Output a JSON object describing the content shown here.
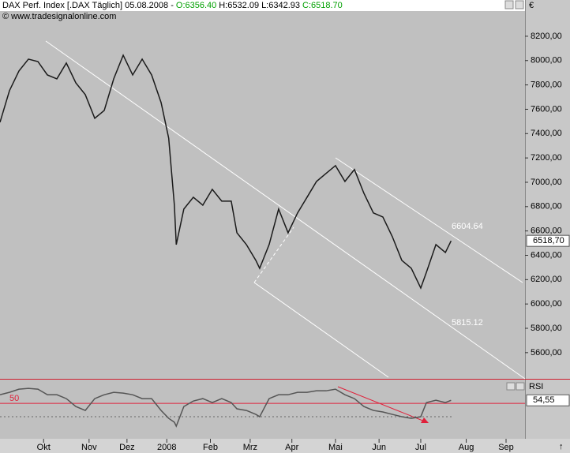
{
  "header": {
    "instrument": "DAX Perf. Index [.DAX  Täglich] 05.08.2008 - ",
    "open": "O:6356.40",
    "high": "H:6532.09",
    "low": "L:6342.93",
    "close": "C:6518.70",
    "copyright": "© www.tradesignalonline.com"
  },
  "chart_data": [
    {
      "type": "line",
      "color": "#1a1a1a",
      "x": [
        0,
        5,
        10,
        15,
        20,
        25,
        30,
        35,
        40,
        45,
        50,
        55,
        60,
        65,
        70,
        75,
        80,
        85,
        89,
        92,
        93,
        97,
        102,
        107,
        112,
        117,
        122,
        125,
        130,
        135,
        137,
        142,
        147,
        152,
        157,
        162,
        167,
        172,
        177,
        182,
        187,
        192,
        197,
        202,
        207,
        212,
        217,
        222,
        225,
        230,
        235,
        238
      ],
      "series": [
        {
          "name": "DAX",
          "color": "#1a1a1a",
          "values": [
            7493,
            7753,
            7915,
            8012,
            7992,
            7882,
            7850,
            7980,
            7817,
            7720,
            7526,
            7590,
            7850,
            8044,
            7882,
            8012,
            7882,
            7655,
            7363,
            6812,
            6488,
            6780,
            6877,
            6812,
            6942,
            6845,
            6845,
            6585,
            6488,
            6358,
            6293,
            6488,
            6780,
            6585,
            6748,
            6877,
            7007,
            7072,
            7137,
            7007,
            7105,
            6910,
            6748,
            6715,
            6553,
            6358,
            6293,
            6131,
            6261,
            6488,
            6423,
            6518.7
          ]
        }
      ],
      "xlim": [
        0,
        277
      ],
      "xticks": [
        {
          "value": 23,
          "label": "Okt"
        },
        {
          "value": 47,
          "label": "Nov"
        },
        {
          "value": 67,
          "label": "Dez"
        },
        {
          "value": 88,
          "label": "2008"
        },
        {
          "value": 111,
          "label": "Feb"
        },
        {
          "value": 132,
          "label": "Mrz"
        },
        {
          "value": 154,
          "label": "Apr"
        },
        {
          "value": 177,
          "label": "Mai"
        },
        {
          "value": 200,
          "label": "Jun"
        },
        {
          "value": 222,
          "label": "Jul"
        },
        {
          "value": 246,
          "label": "Aug"
        },
        {
          "value": 267,
          "label": "Sep"
        }
      ],
      "ylim": [
        5385,
        8407
      ],
      "yticks": [
        {
          "value": 8200,
          "label": "8200,00"
        },
        {
          "value": 8000,
          "label": "8000,00"
        },
        {
          "value": 7800,
          "label": "7800,00"
        },
        {
          "value": 7600,
          "label": "7600,00"
        },
        {
          "value": 7400,
          "label": "7400,00"
        },
        {
          "value": 7200,
          "label": "7200,00"
        },
        {
          "value": 7000,
          "label": "7000,00"
        },
        {
          "value": 6800,
          "label": "6800,00"
        },
        {
          "value": 6600,
          "label": "6600,00"
        },
        {
          "value": 6400,
          "label": "6400,00"
        },
        {
          "value": 6200,
          "label": "6200,00"
        },
        {
          "value": 6000,
          "label": "6000,00"
        },
        {
          "value": 5800,
          "label": "5800,00"
        },
        {
          "value": 5600,
          "label": "5600,00"
        }
      ],
      "last_label": "6518,70",
      "axis_label": "€",
      "annotations": [
        "6604.64",
        "5815.12"
      ]
    },
    {
      "type": "line",
      "title": "RSI",
      "color": "#555555",
      "x": [
        0,
        5,
        10,
        15,
        20,
        25,
        30,
        35,
        40,
        45,
        50,
        55,
        60,
        65,
        70,
        75,
        80,
        85,
        89,
        92,
        93,
        97,
        102,
        107,
        112,
        117,
        122,
        125,
        130,
        135,
        137,
        142,
        147,
        152,
        157,
        162,
        167,
        172,
        177,
        182,
        187,
        192,
        197,
        202,
        207,
        212,
        217,
        222,
        225,
        230,
        235,
        238
      ],
      "series": [
        {
          "name": "RSI",
          "color": "#555555",
          "values": [
            62.9,
            66.5,
            71.2,
            72.4,
            71.2,
            62.9,
            62.9,
            57.1,
            45.3,
            39.4,
            57.1,
            62.9,
            66.5,
            65.3,
            62.9,
            57.1,
            57.1,
            39.4,
            27.6,
            21.8,
            15.9,
            45.3,
            53.5,
            57.1,
            51.2,
            57.1,
            51.2,
            41.8,
            39.4,
            33.5,
            30,
            57.1,
            62.9,
            62.9,
            66.5,
            66.5,
            68.8,
            68.8,
            71.2,
            62.9,
            57.1,
            45.3,
            39.4,
            37.1,
            33.5,
            30,
            27.6,
            30,
            51.2,
            54.7,
            51.2,
            54.55
          ]
        }
      ],
      "xlim": [
        0,
        277
      ],
      "ylim": [
        -3,
        82
      ],
      "yticks": [
        50
      ],
      "last_label": "54,55"
    }
  ]
}
